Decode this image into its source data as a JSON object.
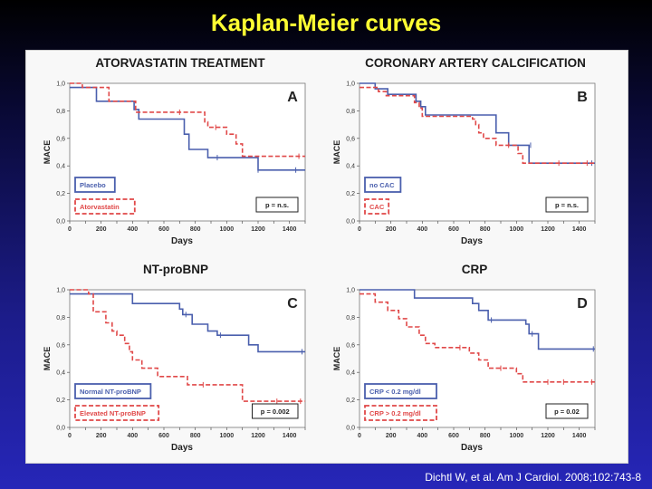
{
  "slide_title": "Kaplan-Meier curves",
  "citation": "Dichtl W, et al. Am J Cardiol. 2008;102:743-8",
  "colors": {
    "blue": "#4a5fad",
    "red": "#e04848",
    "title_yellow": "#ffff33"
  },
  "chart_data": [
    {
      "type": "line",
      "step": true,
      "title": "ATORVASTATIN TREATMENT",
      "panel_label": "A",
      "xlabel": "Days",
      "ylabel": "MACE",
      "xlim": [
        0,
        1500
      ],
      "ylim": [
        0,
        1.0
      ],
      "xticks": [
        "0",
        "100",
        "200",
        "300",
        "400",
        "500",
        "600",
        "700",
        "800",
        "900",
        "1000",
        "1100",
        "1200",
        "1300",
        "1400",
        "1500"
      ],
      "yticks": [
        "0,0",
        "0,2",
        "0,4",
        "0,6",
        "0,8",
        "1,0"
      ],
      "p_value": "p = n.s.",
      "series": [
        {
          "name": "Placebo",
          "color": "#4a5fad",
          "dash": false,
          "x": [
            0,
            150,
            170,
            380,
            410,
            440,
            660,
            730,
            760,
            880,
            1200,
            1500
          ],
          "y": [
            0.97,
            0.97,
            0.87,
            0.87,
            0.81,
            0.74,
            0.74,
            0.63,
            0.52,
            0.46,
            0.37,
            0.37
          ],
          "censored": [
            [
              940,
              0.46
            ],
            [
              1200,
              0.37
            ],
            [
              1440,
              0.37
            ]
          ]
        },
        {
          "name": "Atorvastatin",
          "color": "#e04848",
          "dash": true,
          "x": [
            0,
            80,
            250,
            420,
            820,
            860,
            880,
            1000,
            1060,
            1100,
            1220,
            1500
          ],
          "y": [
            1.0,
            0.97,
            0.87,
            0.79,
            0.79,
            0.72,
            0.68,
            0.63,
            0.56,
            0.47,
            0.47,
            0.47
          ],
          "censored": [
            [
              700,
              0.79
            ],
            [
              930,
              0.68
            ],
            [
              1460,
              0.47
            ]
          ]
        }
      ]
    },
    {
      "type": "line",
      "step": true,
      "title": "CORONARY ARTERY CALCIFICATION",
      "panel_label": "B",
      "xlabel": "Days",
      "ylabel": "MACE",
      "xlim": [
        0,
        1500
      ],
      "ylim": [
        0,
        1.0
      ],
      "xticks": [
        "0",
        "100",
        "200",
        "300",
        "400",
        "500",
        "600",
        "700",
        "800",
        "900",
        "1000",
        "1100",
        "1200",
        "1300",
        "1400",
        "1500"
      ],
      "yticks": [
        "0,0",
        "0,2",
        "0,4",
        "0,6",
        "0,8",
        "1,0"
      ],
      "p_value": "p = n.s.",
      "series": [
        {
          "name": "no CAC",
          "color": "#4a5fad",
          "dash": false,
          "x": [
            0,
            100,
            180,
            360,
            390,
            420,
            840,
            870,
            950,
            1060,
            1080,
            1500
          ],
          "y": [
            1.0,
            0.96,
            0.92,
            0.87,
            0.83,
            0.77,
            0.77,
            0.64,
            0.55,
            0.55,
            0.42,
            0.42
          ],
          "censored": [
            [
              1090,
              0.55
            ],
            [
              1480,
              0.42
            ]
          ]
        },
        {
          "name": "CAC",
          "color": "#e04848",
          "dash": true,
          "x": [
            0,
            120,
            170,
            350,
            380,
            400,
            720,
            740,
            760,
            790,
            870,
            930,
            1010,
            1040,
            1500
          ],
          "y": [
            0.97,
            0.94,
            0.91,
            0.86,
            0.82,
            0.76,
            0.74,
            0.7,
            0.64,
            0.6,
            0.55,
            0.55,
            0.49,
            0.42,
            0.42
          ],
          "censored": [
            [
              950,
              0.55
            ],
            [
              1270,
              0.42
            ],
            [
              1450,
              0.42
            ]
          ]
        }
      ]
    },
    {
      "type": "line",
      "step": true,
      "title": "NT-proBNP",
      "panel_label": "C",
      "xlabel": "Days",
      "ylabel": "MACE",
      "xlim": [
        0,
        1500
      ],
      "ylim": [
        0,
        1.0
      ],
      "xticks": [
        "0",
        "100",
        "200",
        "300",
        "400",
        "500",
        "600",
        "700",
        "800",
        "900",
        "1000",
        "1100",
        "1200",
        "1300",
        "1400",
        "1500"
      ],
      "yticks": [
        "0,0",
        "0,2",
        "0,4",
        "0,6",
        "0,8",
        "1,0"
      ],
      "p_value": "p = 0.002",
      "series": [
        {
          "name": "Normal NT-proBNP",
          "color": "#4a5fad",
          "dash": false,
          "x": [
            0,
            400,
            700,
            720,
            780,
            880,
            940,
            1140,
            1200,
            1500
          ],
          "y": [
            0.97,
            0.9,
            0.86,
            0.82,
            0.75,
            0.7,
            0.67,
            0.6,
            0.55,
            0.55
          ],
          "censored": [
            [
              740,
              0.82
            ],
            [
              960,
              0.67
            ],
            [
              1480,
              0.55
            ]
          ]
        },
        {
          "name": "Elevated NT-proBNP",
          "color": "#e04848",
          "dash": true,
          "x": [
            0,
            120,
            150,
            230,
            270,
            300,
            350,
            380,
            400,
            460,
            560,
            750,
            1100,
            1500
          ],
          "y": [
            1.0,
            0.97,
            0.84,
            0.76,
            0.7,
            0.67,
            0.61,
            0.55,
            0.49,
            0.43,
            0.37,
            0.31,
            0.19,
            0.19
          ],
          "censored": [
            [
              850,
              0.31
            ],
            [
              1320,
              0.19
            ],
            [
              1470,
              0.19
            ]
          ]
        }
      ]
    },
    {
      "type": "line",
      "step": true,
      "title": "CRP",
      "panel_label": "D",
      "xlabel": "Days",
      "ylabel": "MACE",
      "xlim": [
        0,
        1500
      ],
      "ylim": [
        0,
        1.0
      ],
      "xticks": [
        "0",
        "100",
        "200",
        "300",
        "400",
        "500",
        "600",
        "700",
        "800",
        "900",
        "1000",
        "1100",
        "1200",
        "1300",
        "1400",
        "1500"
      ],
      "yticks": [
        "0,0",
        "0,2",
        "0,4",
        "0,6",
        "0,8",
        "1,0"
      ],
      "p_value": "p = 0.02",
      "series": [
        {
          "name": "CRP < 0.2 mg/dl",
          "color": "#4a5fad",
          "dash": false,
          "x": [
            0,
            350,
            720,
            760,
            820,
            1060,
            1080,
            1140,
            1500
          ],
          "y": [
            1.0,
            0.94,
            0.9,
            0.85,
            0.78,
            0.75,
            0.68,
            0.57,
            0.57
          ],
          "censored": [
            [
              840,
              0.78
            ],
            [
              1100,
              0.68
            ],
            [
              1490,
              0.57
            ]
          ]
        },
        {
          "name": "CRP > 0.2 mg/dl",
          "color": "#e04848",
          "dash": true,
          "x": [
            0,
            100,
            180,
            250,
            300,
            380,
            420,
            480,
            520,
            700,
            760,
            820,
            1000,
            1040,
            1500
          ],
          "y": [
            0.97,
            0.91,
            0.85,
            0.79,
            0.73,
            0.67,
            0.61,
            0.58,
            0.58,
            0.54,
            0.49,
            0.43,
            0.39,
            0.33,
            0.33
          ],
          "censored": [
            [
              640,
              0.58
            ],
            [
              900,
              0.43
            ],
            [
              1200,
              0.33
            ],
            [
              1300,
              0.33
            ],
            [
              1480,
              0.33
            ]
          ]
        }
      ]
    }
  ]
}
